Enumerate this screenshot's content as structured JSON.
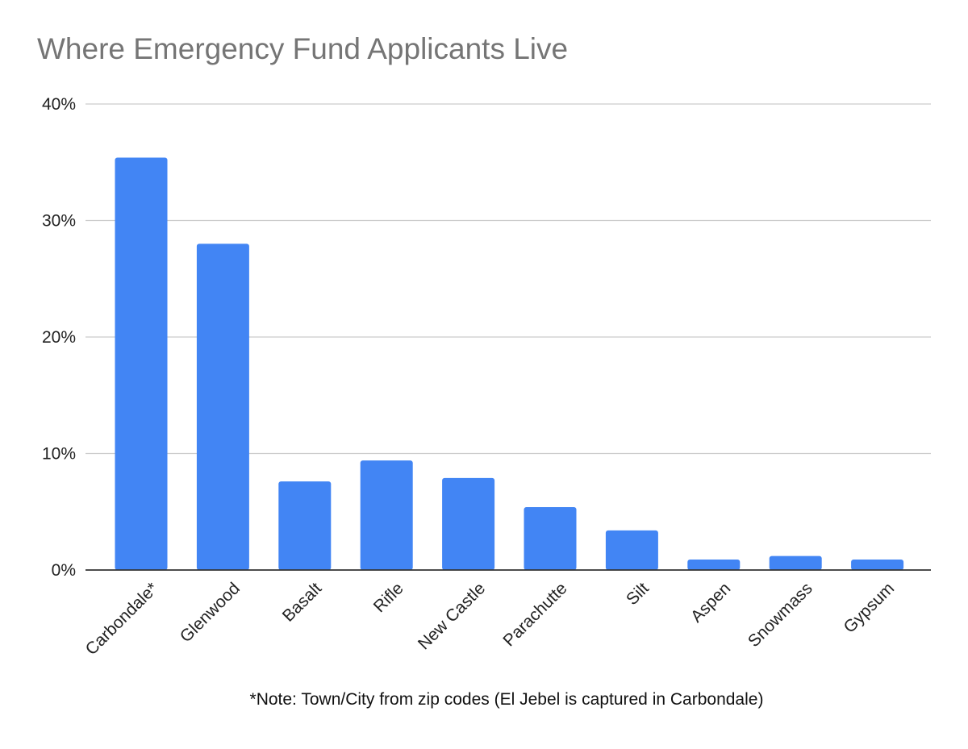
{
  "chart_data": {
    "type": "bar",
    "title": "Where Emergency Fund Applicants Live",
    "xlabel": "",
    "ylabel": "",
    "categories": [
      "Carbondale*",
      "Glenwood",
      "Basalt",
      "Rifle",
      "New Castle",
      "Parachutte",
      "Silt",
      "Aspen",
      "Snowmass",
      "Gypsum"
    ],
    "values": [
      35.4,
      28.0,
      7.6,
      9.4,
      7.9,
      5.4,
      3.4,
      0.9,
      1.2,
      0.9
    ],
    "ylim": [
      0,
      40
    ],
    "yticks": [
      0,
      10,
      20,
      30,
      40
    ],
    "ytick_format": "%",
    "grid": true,
    "legend": "none",
    "bar_color": "#4285f4",
    "grid_color": "#cccccc",
    "axis_color": "#333333",
    "note": "*Note: Town/City from zip codes (El Jebel is captured in Carbondale)"
  }
}
